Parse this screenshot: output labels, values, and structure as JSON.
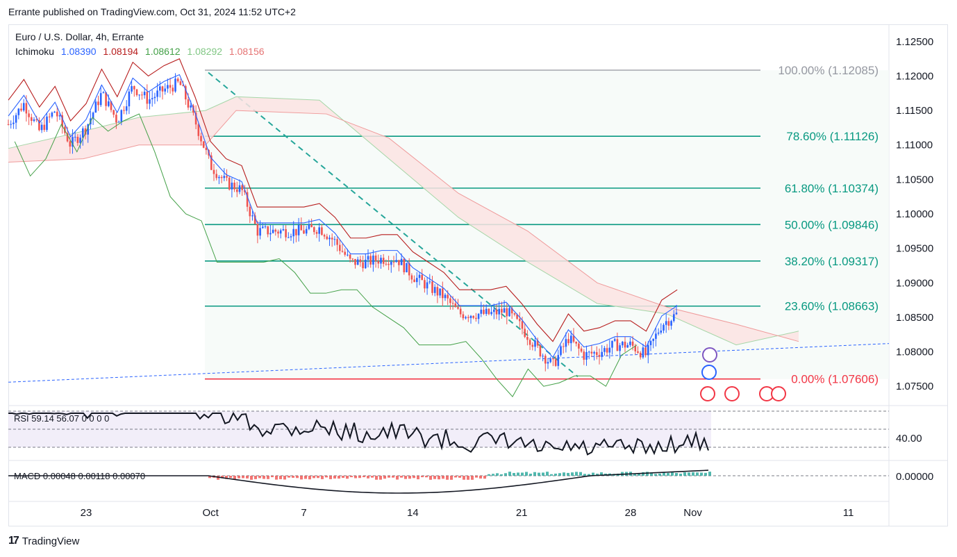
{
  "header": {
    "published": "Errante published on TradingView.com, Oct 31, 2024 11:52 UTC+2"
  },
  "legend": {
    "symbol": "Euro / U.S. Dollar, 4h, Errante",
    "indicator": "Ichimoku",
    "ichimoku_values": [
      "1.08390",
      "1.08194",
      "1.08612",
      "1.08292",
      "1.08156"
    ],
    "ichimoku_colors": [
      "#2962ff",
      "#b71c1c",
      "#43a047",
      "#a5d6a7",
      "#ef9a9a"
    ]
  },
  "brand": {
    "name": "TradingView"
  },
  "colors": {
    "up": "#2962ff",
    "down": "#ef5350",
    "fib": "#089981",
    "fib_zero": "#f23645",
    "tenkan": "#2962ff",
    "kijun": "#b71c1c",
    "chikou": "#43a047",
    "senkou_a": "#a5d6a7",
    "senkou_b": "#ef9a9a",
    "trend": "#26a69a"
  },
  "chart_data": {
    "type": "candlestick",
    "timeframe": "4h",
    "x_ticks": [
      "23",
      "Oct",
      "7",
      "14",
      "21",
      "28",
      "Nov",
      "11"
    ],
    "y_ticks": [
      "1.12500",
      "1.12000",
      "1.11500",
      "1.11000",
      "1.10500",
      "1.10000",
      "1.09500",
      "1.09000",
      "1.08500",
      "1.08000",
      "1.07500"
    ],
    "ylim": [
      1.0722,
      1.1275
    ],
    "close_path": [
      [
        "Sep 18",
        1.113
      ],
      [
        "Sep 19",
        1.116
      ],
      [
        "Sep 20",
        1.112
      ],
      [
        "Sep 21",
        1.115
      ],
      [
        "Sep 22",
        1.11
      ],
      [
        "Sep 23",
        1.1125
      ],
      [
        "Sep 24",
        1.1175
      ],
      [
        "Sep 25",
        1.1135
      ],
      [
        "Sep 26",
        1.1185
      ],
      [
        "Sep 27",
        1.1165
      ],
      [
        "Sep 28",
        1.118
      ],
      [
        "Sep 29",
        1.119
      ],
      [
        "Sep 30",
        1.1135
      ],
      [
        "Oct 1",
        1.107
      ],
      [
        "Oct 2",
        1.1045
      ],
      [
        "Oct 3",
        1.1035
      ],
      [
        "Oct 4",
        1.0975
      ],
      [
        "Oct 5",
        1.0975
      ],
      [
        "Oct 6",
        1.0975
      ],
      [
        "Oct 7",
        1.0975
      ],
      [
        "Oct 8",
        1.098
      ],
      [
        "Oct 9",
        1.096
      ],
      [
        "Oct 10",
        1.093
      ],
      [
        "Oct 11",
        1.093
      ],
      [
        "Oct 12",
        1.0935
      ],
      [
        "Oct 13",
        1.0935
      ],
      [
        "Oct 14",
        1.091
      ],
      [
        "Oct 15",
        1.0895
      ],
      [
        "Oct 16",
        1.088
      ],
      [
        "Oct 17",
        1.0855
      ],
      [
        "Oct 18",
        1.0855
      ],
      [
        "Oct 19",
        1.0855
      ],
      [
        "Oct 20",
        1.086
      ],
      [
        "Oct 21",
        1.0835
      ],
      [
        "Oct 22",
        1.0805
      ],
      [
        "Oct 23",
        1.078
      ],
      [
        "Oct 24",
        1.082
      ],
      [
        "Oct 25",
        1.0795
      ],
      [
        "Oct 26",
        1.08
      ],
      [
        "Oct 27",
        1.081
      ],
      [
        "Oct 28",
        1.081
      ],
      [
        "Oct 29",
        1.0795
      ],
      [
        "Oct 30",
        1.084
      ],
      [
        "Oct 31",
        1.0855
      ]
    ],
    "fibonacci": [
      {
        "level": "100.00%",
        "price": "1.12085",
        "value": 1.12085
      },
      {
        "level": "78.60%",
        "price": "1.11126",
        "value": 1.11126
      },
      {
        "level": "61.80%",
        "price": "1.10374",
        "value": 1.10374
      },
      {
        "level": "50.00%",
        "price": "1.09846",
        "value": 1.09846
      },
      {
        "level": "38.20%",
        "price": "1.09317",
        "value": 1.09317
      },
      {
        "level": "23.60%",
        "price": "1.08663",
        "value": 1.08663
      },
      {
        "level": "0.00%",
        "price": "1.07606",
        "value": 1.07606
      }
    ],
    "rsi": {
      "label": "RSI 59.14 56.07 0 0 0 0",
      "y_tick": "40.00"
    },
    "macd": {
      "label": "MACD 0.00048 0.00118 0.00070",
      "y_tick": "0.00000"
    }
  }
}
